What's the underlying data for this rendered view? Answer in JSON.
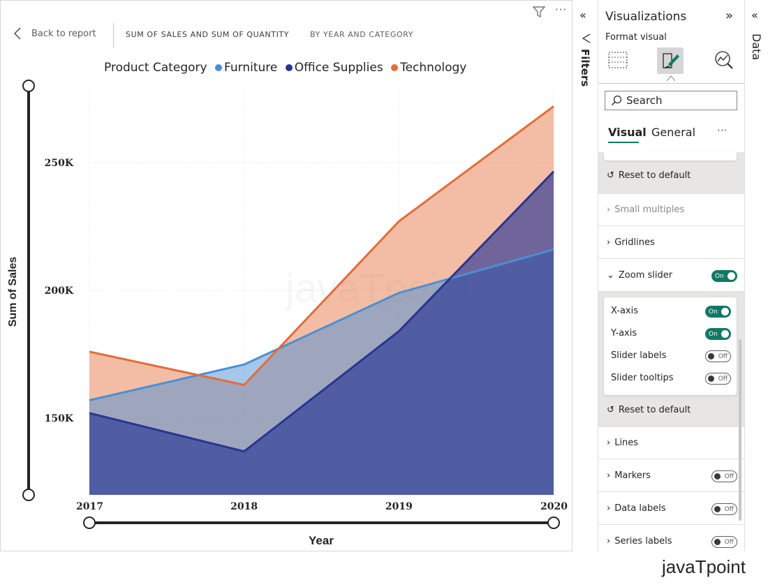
{
  "header": {
    "back_label": "Back to report",
    "title_caps": "SUM OF SALES AND SUM OF QUANTITY",
    "subtitle_caps": "BY YEAR AND CATEGORY"
  },
  "chart_data": {
    "type": "area",
    "legend_title": "Product Category",
    "x": [
      "2017",
      "2018",
      "2019",
      "2020"
    ],
    "series": [
      {
        "name": "Furniture",
        "color": "#4a8fd6",
        "values": [
          157000,
          171000,
          199000,
          216000
        ]
      },
      {
        "name": "Office Supplies",
        "color": "#283593",
        "values": [
          152000,
          137000,
          184000,
          246500
        ]
      },
      {
        "name": "Technology",
        "color": "#e46c38",
        "values": [
          176000,
          163000,
          227000,
          272000
        ]
      }
    ],
    "yticks": [
      150000,
      200000,
      250000
    ],
    "ytick_labels": [
      "150K",
      "200K",
      "250K"
    ],
    "ylim": [
      120000,
      280000
    ],
    "xlabel": "Year",
    "ylabel": "Sum of Sales",
    "watermark": "javaTpoint"
  },
  "filters_pane": {
    "label": "Filters"
  },
  "viz_pane": {
    "title": "Visualizations",
    "subtitle": "Format visual",
    "search_placeholder": "Search",
    "tab_visual": "Visual",
    "tab_general": "General",
    "more": "···",
    "reset_label": "Reset to default",
    "sections": {
      "small_multiples": "Small multiples",
      "gridlines": "Gridlines",
      "zoom_slider": "Zoom slider",
      "lines": "Lines",
      "markers": "Markers",
      "data_labels": "Data labels",
      "series_labels": "Series labels"
    },
    "zoom": {
      "x_axis": "X-axis",
      "y_axis": "Y-axis",
      "slider_labels": "Slider labels",
      "slider_tooltips": "Slider tooltips"
    },
    "on_label": "On",
    "off_label": "Off"
  },
  "data_pane": {
    "label": "Data"
  },
  "brand": "javaTpoint"
}
